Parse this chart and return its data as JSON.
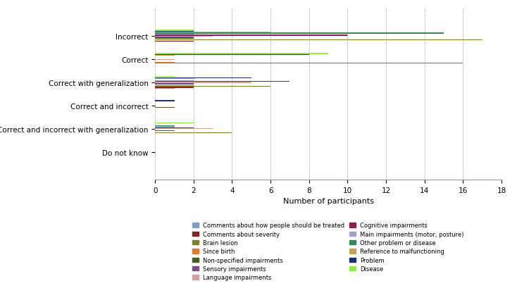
{
  "categories": [
    "Do not know",
    "Correct and incorrect with generalization",
    "Correct and incorrect",
    "Correct with generalization",
    "Correct",
    "Incorrect"
  ],
  "series": [
    {
      "label": "Comments about how people should be treated",
      "color": "#7F9EC9",
      "values": [
        0,
        0,
        0,
        1,
        0,
        0
      ]
    },
    {
      "label": "Comments about severity",
      "color": "#8B2020",
      "values": [
        0,
        0,
        0,
        2,
        0,
        2
      ]
    },
    {
      "label": "Brain lesion",
      "color": "#808020",
      "values": [
        0,
        4,
        0,
        6,
        16,
        17
      ]
    },
    {
      "label": "Since birth",
      "color": "#E07B2C",
      "values": [
        0,
        0,
        0,
        2,
        1,
        0
      ]
    },
    {
      "label": "Non-specified impairments",
      "color": "#4B5E20",
      "values": [
        0,
        1,
        1,
        2,
        0,
        2
      ]
    },
    {
      "label": "Sensory impairments",
      "color": "#7B4F8C",
      "values": [
        0,
        0,
        0,
        2,
        0,
        2
      ]
    },
    {
      "label": "Language impairments",
      "color": "#D4A0A0",
      "values": [
        0,
        3,
        0,
        5,
        1,
        3
      ]
    },
    {
      "label": "Cognitive impairments",
      "color": "#8B2252",
      "values": [
        0,
        2,
        0,
        7,
        0,
        10
      ]
    },
    {
      "label": "Main impairments (motor, posture)",
      "color": "#A0A0C8",
      "values": [
        0,
        1,
        0,
        2,
        0,
        2
      ]
    },
    {
      "label": "Other problem or disease",
      "color": "#2E8B57",
      "values": [
        0,
        1,
        0,
        0,
        0,
        15
      ]
    },
    {
      "label": "Reference to malfunctioning",
      "color": "#C8A050",
      "values": [
        0,
        0,
        0,
        2,
        1,
        6
      ]
    },
    {
      "label": "Problem",
      "color": "#1C2E6B",
      "values": [
        0,
        0,
        1,
        5,
        8,
        2
      ]
    },
    {
      "label": "Disease",
      "color": "#90EE40",
      "values": [
        0,
        2,
        0,
        1,
        9,
        2
      ]
    }
  ],
  "xlabel": "Number of participants",
  "xlim": [
    0,
    18
  ],
  "xticks": [
    0,
    2,
    4,
    6,
    8,
    10,
    12,
    14,
    16,
    18
  ],
  "background_color": "#ffffff",
  "grid_color": "#d0d0d0",
  "legend_order": [
    "Comments about how people should be treated",
    "Comments about severity",
    "Brain lesion",
    "Since birth",
    "Non-specified impairments",
    "Sensory impairments",
    "Language impairments",
    "Cognitive impairments",
    "Main impairments (motor, posture)",
    "Other problem or disease",
    "Reference to malfunctioning",
    "Problem",
    "Disease"
  ]
}
